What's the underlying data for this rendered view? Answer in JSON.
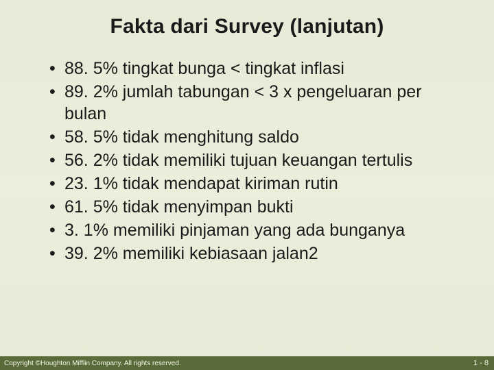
{
  "slide": {
    "title": "Fakta dari Survey (lanjutan)",
    "bullets": [
      "88. 5% tingkat bunga < tingkat inflasi",
      "89. 2% jumlah tabungan < 3 x pengeluaran per bulan",
      "58. 5% tidak menghitung saldo",
      "56. 2% tidak memiliki tujuan keuangan tertulis",
      "23. 1% tidak mendapat kiriman rutin",
      "61. 5% tidak menyimpan bukti",
      "3. 1% memiliki pinjaman yang ada bunganya",
      "39. 2% memiliki kebiasaan jalan2"
    ],
    "title_fontsize": 30,
    "bullet_fontsize": 25,
    "text_color": "#1a1a1a",
    "background_gradient": [
      "#e8e9d6",
      "#eceddb",
      "#e8e9d6"
    ]
  },
  "footer": {
    "copyright": "Copyright ©Houghton Mifflin Company. All rights reserved.",
    "page": "1 - 8",
    "background_color": "#5a6b3a",
    "text_color": "#f5f5e8",
    "fontsize": 10
  }
}
